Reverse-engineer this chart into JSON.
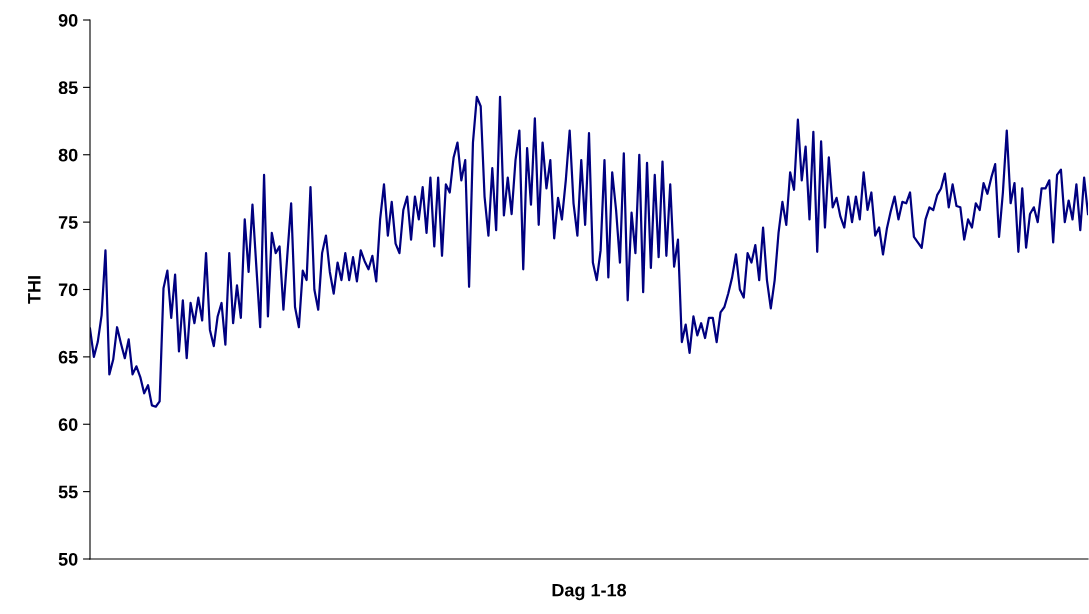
{
  "chart_data": {
    "type": "line",
    "xlabel": "Dag 1-18",
    "ylabel": "THI",
    "ylim": [
      50,
      90
    ],
    "yticks": [
      50,
      55,
      60,
      65,
      70,
      75,
      80,
      85,
      90
    ],
    "grid": false,
    "marker": "none",
    "line_style": "solid",
    "categories": [
      null,
      null,
      null,
      null,
      null,
      null,
      null,
      null,
      null,
      null,
      null,
      null,
      null,
      null,
      null,
      null,
      null,
      null,
      null,
      null,
      null,
      null,
      null,
      null,
      null,
      null,
      null,
      null,
      null,
      null,
      null,
      null,
      null,
      null,
      null,
      null,
      null,
      null,
      null,
      null,
      null,
      null,
      null,
      null,
      null,
      null,
      null,
      null,
      null,
      null,
      null,
      null,
      null,
      null,
      null,
      null,
      null,
      null,
      null,
      null,
      null,
      null,
      null,
      null,
      null,
      null,
      null,
      null,
      null,
      null,
      null,
      null,
      null,
      null,
      null,
      null,
      null,
      null,
      null,
      null,
      null,
      null,
      null,
      null,
      null,
      null,
      null,
      null,
      null,
      null,
      null,
      null,
      null,
      null,
      null,
      null,
      null,
      null,
      null,
      null,
      null,
      null,
      null,
      null,
      null,
      null,
      null,
      null,
      null,
      null,
      null,
      null,
      null,
      null,
      null,
      null,
      null,
      null,
      null,
      null,
      null,
      null,
      null,
      null,
      null,
      null,
      null,
      null,
      null,
      null,
      null,
      null,
      null,
      null,
      null,
      null,
      null,
      null,
      null,
      null,
      null,
      null,
      null,
      null,
      null,
      null,
      null,
      null,
      null,
      null,
      null,
      null,
      null,
      null,
      null,
      null,
      null,
      null,
      null,
      null,
      null,
      null,
      null,
      null,
      null,
      null,
      null,
      null,
      null,
      null,
      null,
      null,
      null,
      null,
      null,
      null,
      null,
      null,
      null,
      null,
      null,
      null,
      null,
      null,
      null,
      null,
      null,
      null,
      null,
      null,
      null,
      null,
      null,
      null,
      null,
      null,
      null,
      null,
      null,
      null,
      null,
      null,
      null,
      null,
      null,
      null,
      null,
      null,
      null,
      null,
      null,
      null,
      null,
      null,
      null,
      null,
      null,
      null,
      null,
      null,
      null,
      null,
      null,
      null,
      null,
      null,
      null,
      null,
      null,
      null,
      null,
      null,
      null,
      null,
      null,
      null,
      null,
      null,
      null,
      null,
      null,
      null,
      null,
      null,
      null,
      null,
      null,
      null,
      null,
      null,
      null,
      null,
      null,
      null,
      null,
      null,
      null,
      null,
      null
    ],
    "series": [
      {
        "color": "#000080",
        "values": [
          67.1,
          65.0,
          66.1,
          68.1,
          72.9,
          63.7,
          64.8,
          67.2,
          66.0,
          64.9,
          66.3,
          63.7,
          64.3,
          63.5,
          62.3,
          62.9,
          61.4,
          61.3,
          61.7,
          70.1,
          71.4,
          67.9,
          71.1,
          65.4,
          69.2,
          64.9,
          69.0,
          67.5,
          69.4,
          67.7,
          72.7,
          67.0,
          65.8,
          68.0,
          69.0,
          65.9,
          72.7,
          67.5,
          70.3,
          67.9,
          75.2,
          71.3,
          76.3,
          71.7,
          67.2,
          78.5,
          68.0,
          74.2,
          72.7,
          73.2,
          68.5,
          72.5,
          76.4,
          68.7,
          67.2,
          71.4,
          70.7,
          77.6,
          70.0,
          68.5,
          72.7,
          74.0,
          71.3,
          69.7,
          72.0,
          70.7,
          72.7,
          70.7,
          72.4,
          70.6,
          72.9,
          72.1,
          71.5,
          72.5,
          70.6,
          75.2,
          77.8,
          74.0,
          76.5,
          73.4,
          72.7,
          75.9,
          76.9,
          73.7,
          76.9,
          75.2,
          77.6,
          74.2,
          78.3,
          73.2,
          78.3,
          72.5,
          77.8,
          77.2,
          79.8,
          80.9,
          78.1,
          79.6,
          70.2,
          80.9,
          84.3,
          83.6,
          76.9,
          74.0,
          79.0,
          74.4,
          84.3,
          75.5,
          78.3,
          75.6,
          79.6,
          81.8,
          71.5,
          80.5,
          76.3,
          82.7,
          74.8,
          80.9,
          77.5,
          79.6,
          73.8,
          76.8,
          75.2,
          78.1,
          81.8,
          76.4,
          74.0,
          79.6,
          74.8,
          81.6,
          72.0,
          70.7,
          72.9,
          79.6,
          70.9,
          78.7,
          75.9,
          72.0,
          80.1,
          69.2,
          75.7,
          72.7,
          80.0,
          69.8,
          79.4,
          71.6,
          78.5,
          72.4,
          79.5,
          72.5,
          77.8,
          71.7,
          73.7,
          66.1,
          67.4,
          65.3,
          68.0,
          66.6,
          67.5,
          66.4,
          67.9,
          67.9,
          66.1,
          68.3,
          68.7,
          69.7,
          70.9,
          72.6,
          70.0,
          69.4,
          72.7,
          72.0,
          73.3,
          70.7,
          74.6,
          70.7,
          68.6,
          70.7,
          74.2,
          76.5,
          74.8,
          78.7,
          77.4,
          82.6,
          78.1,
          80.6,
          75.2,
          81.7,
          72.8,
          81.0,
          74.6,
          79.8,
          76.1,
          76.8,
          75.4,
          74.6,
          76.9,
          75.0,
          76.9,
          75.2,
          78.7,
          75.9,
          77.2,
          74.0,
          74.6,
          72.6,
          74.5,
          75.8,
          76.9,
          75.2,
          76.5,
          76.4,
          77.2,
          73.9,
          73.5,
          73.1,
          75.2,
          76.1,
          75.9,
          77.0,
          77.5,
          78.6,
          76.1,
          77.8,
          76.2,
          76.1,
          73.7,
          75.2,
          74.6,
          76.4,
          75.9,
          77.9,
          77.1,
          78.3,
          79.3,
          73.9,
          77.2,
          81.8,
          76.4,
          77.9,
          72.8,
          77.5,
          73.1,
          75.6,
          76.1,
          75.0,
          77.5,
          77.5,
          78.1,
          73.5,
          78.5,
          78.9,
          75.0,
          76.6,
          75.2,
          77.8,
          74.4,
          78.3,
          75.6
        ]
      }
    ]
  }
}
